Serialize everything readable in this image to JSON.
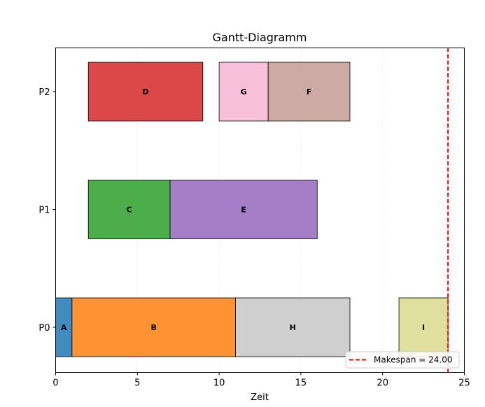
{
  "chart_data": {
    "type": "gantt",
    "title": "Gantt-Diagramm",
    "xlabel": "Zeit",
    "ylabel": "",
    "xlim": [
      0,
      25
    ],
    "x_ticks": [
      0,
      5,
      10,
      15,
      20,
      25
    ],
    "y_categories": [
      "P0",
      "P1",
      "P2"
    ],
    "grid": "vertical dotted",
    "tasks": [
      {
        "name": "A",
        "processor": "P0",
        "start": 0,
        "end": 1,
        "color": "#1f77b4"
      },
      {
        "name": "B",
        "processor": "P0",
        "start": 1,
        "end": 11,
        "color": "#ff7f0e"
      },
      {
        "name": "H",
        "processor": "P0",
        "start": 11,
        "end": 18,
        "color": "#c7c7c7"
      },
      {
        "name": "I",
        "processor": "P0",
        "start": 21,
        "end": 24,
        "color": "#dbdb8d"
      },
      {
        "name": "C",
        "processor": "P1",
        "start": 2,
        "end": 7,
        "color": "#2ca02c"
      },
      {
        "name": "E",
        "processor": "P1",
        "start": 7,
        "end": 16,
        "color": "#9467bd"
      },
      {
        "name": "D",
        "processor": "P2",
        "start": 2,
        "end": 9,
        "color": "#d62728"
      },
      {
        "name": "G",
        "processor": "P2",
        "start": 10,
        "end": 13,
        "color": "#f7b6d2"
      },
      {
        "name": "F",
        "processor": "P2",
        "start": 13,
        "end": 18,
        "color": "#c49c94"
      }
    ],
    "makespan": {
      "value": 24.0,
      "label": "Makespan = 24.00",
      "color": "#ff0000"
    },
    "legend_position": "lower-right"
  }
}
